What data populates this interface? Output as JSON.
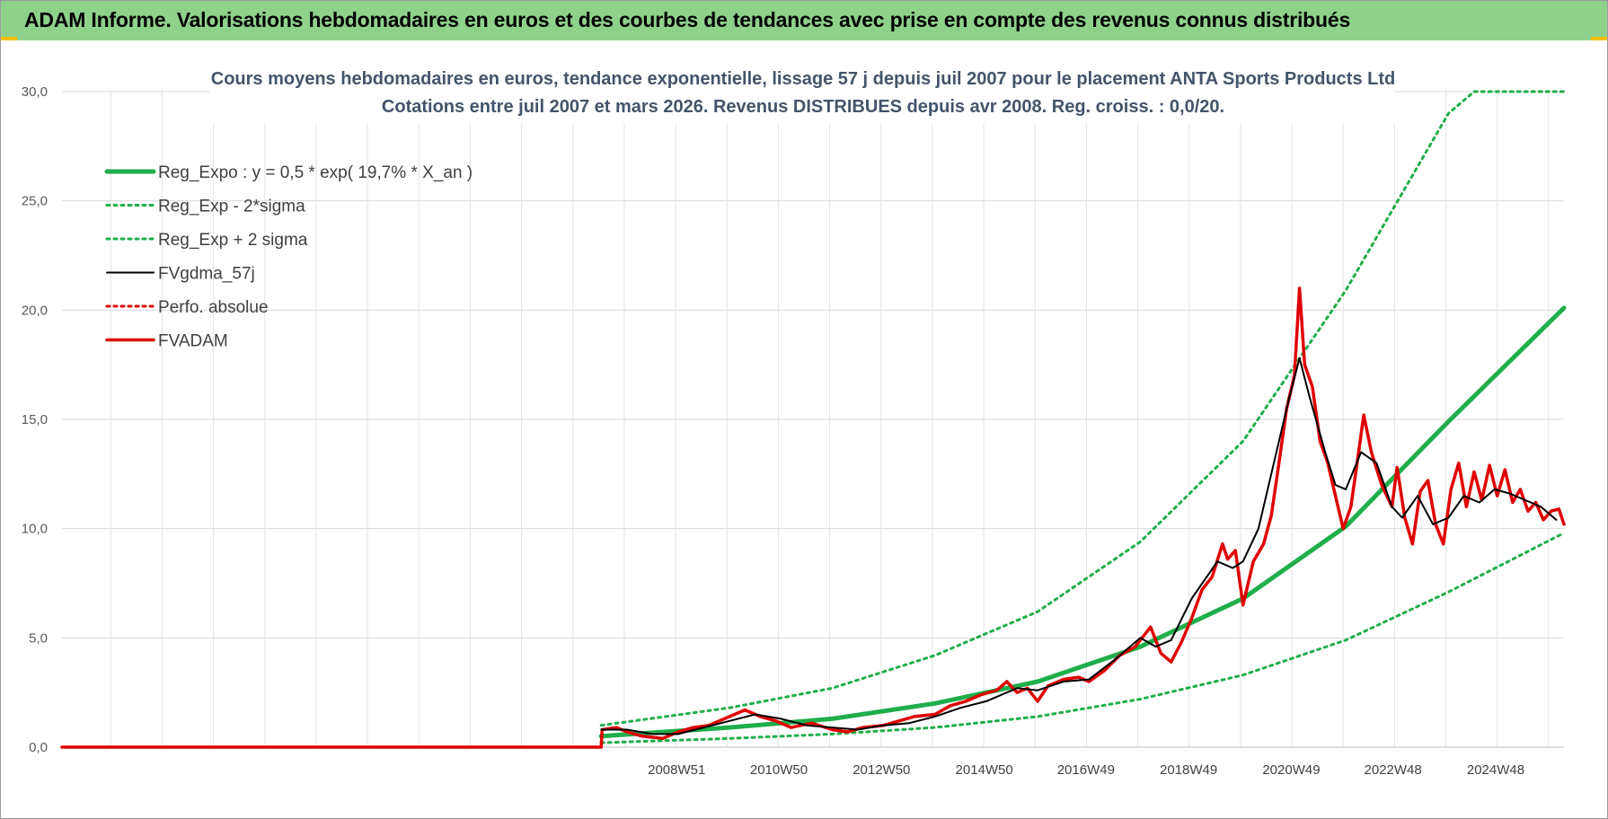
{
  "banner": {
    "title": "ADAM Informe. Valorisations hebdomadaires en euros et des courbes de tendances avec prise en compte des revenus connus distribués",
    "color": "#8fd18b"
  },
  "chart_data": {
    "type": "line",
    "title": "Cours moyens hebdomadaires en euros, tendance exponentielle, lissage 57 j depuis juil 2007 pour le placement ANTA Sports Products Ltd",
    "subtitle": "Cotations entre juil 2007 et mars 2026. Revenus DISTRIBUES depuis avr 2008. Reg. croiss. : 0,0/20.",
    "xlabel": "",
    "ylabel": "",
    "ylim": [
      0,
      30
    ],
    "yticks": [
      "0,0",
      "5,0",
      "10,0",
      "15,0",
      "20,0",
      "25,0",
      "30,0"
    ],
    "xticks": [
      "2008W51",
      "2010W50",
      "2012W50",
      "2014W50",
      "2016W49",
      "2018W49",
      "2020W49",
      "2022W48",
      "2024W48"
    ],
    "xtick_years": [
      2008.97,
      2010.96,
      2012.96,
      2014.96,
      2016.94,
      2018.94,
      2020.94,
      2022.92,
      2024.92
    ],
    "x_range_years": [
      1997.0,
      2026.25
    ],
    "grid": true,
    "legend_position": "top-left",
    "series": [
      {
        "name": "Reg_Expo : y = 0,5 * exp( 19,7% *  X_an )",
        "color": "#1fae4b",
        "style": "solid-thick",
        "x": [
          2007.5,
          2010,
          2012,
          2014,
          2016,
          2018,
          2020,
          2022,
          2024,
          2026.25
        ],
        "y": [
          0.5,
          0.9,
          1.3,
          2.0,
          3.0,
          4.6,
          6.8,
          10.1,
          14.9,
          20.1
        ]
      },
      {
        "name": "Reg_Exp - 2*sigma",
        "color": "#1fae4b",
        "style": "dotted",
        "x": [
          2007.5,
          2010,
          2012,
          2014,
          2016,
          2018,
          2020,
          2022,
          2024,
          2026.25
        ],
        "y": [
          0.2,
          0.4,
          0.6,
          0.9,
          1.4,
          2.2,
          3.3,
          4.9,
          7.1,
          9.8
        ]
      },
      {
        "name": "Reg_Exp + 2 sigma",
        "color": "#1fae4b",
        "style": "dotted",
        "x": [
          2007.5,
          2010,
          2012,
          2014,
          2016,
          2018,
          2020,
          2022,
          2024,
          2024.5,
          2026.25
        ],
        "y": [
          1.0,
          1.8,
          2.7,
          4.2,
          6.2,
          9.4,
          14.0,
          20.9,
          29.0,
          30.0,
          30.0
        ]
      },
      {
        "name": "FVgdma_57j",
        "color": "#000000",
        "style": "solid",
        "x": [
          2007.5,
          2008.0,
          2008.5,
          2009.0,
          2009.5,
          2010.0,
          2010.5,
          2011.0,
          2011.5,
          2012.0,
          2012.5,
          2013.0,
          2013.5,
          2014.0,
          2014.5,
          2015.0,
          2015.3,
          2015.6,
          2016.0,
          2016.5,
          2017.0,
          2017.5,
          2018.0,
          2018.3,
          2018.6,
          2019.0,
          2019.5,
          2019.8,
          2020.0,
          2020.3,
          2020.6,
          2020.9,
          2021.1,
          2021.3,
          2021.6,
          2021.8,
          2022.0,
          2022.3,
          2022.6,
          2022.9,
          2023.1,
          2023.4,
          2023.7,
          2024.0,
          2024.3,
          2024.6,
          2024.9,
          2025.2,
          2025.5,
          2025.8,
          2026.1
        ],
        "y": [
          0.8,
          0.8,
          0.6,
          0.6,
          0.9,
          1.2,
          1.5,
          1.3,
          1.0,
          0.9,
          0.8,
          1.0,
          1.1,
          1.4,
          1.8,
          2.1,
          2.4,
          2.7,
          2.6,
          3.0,
          3.1,
          4.0,
          5.0,
          4.6,
          4.9,
          6.8,
          8.5,
          8.2,
          8.5,
          10.0,
          13.0,
          16.0,
          17.8,
          16.0,
          13.5,
          12.0,
          11.8,
          13.5,
          13.0,
          11.0,
          10.5,
          11.5,
          10.2,
          10.5,
          11.5,
          11.2,
          11.8,
          11.6,
          11.3,
          11.0,
          10.4
        ]
      },
      {
        "name": "Perfo. absolue",
        "color": "#e00000",
        "style": "dotted",
        "x": [],
        "y": []
      },
      {
        "name": "FVADAM",
        "color": "#e00000",
        "style": "solid-thick",
        "x": [
          1997.0,
          2007.5,
          2007.52,
          2007.8,
          2008.0,
          2008.3,
          2008.7,
          2009.0,
          2009.3,
          2009.6,
          2010.0,
          2010.3,
          2010.6,
          2010.9,
          2011.2,
          2011.6,
          2012.0,
          2012.3,
          2012.6,
          2013.0,
          2013.3,
          2013.6,
          2014.0,
          2014.3,
          2014.6,
          2014.9,
          2015.2,
          2015.4,
          2015.6,
          2015.8,
          2016.0,
          2016.2,
          2016.5,
          2016.8,
          2017.0,
          2017.3,
          2017.6,
          2017.9,
          2018.2,
          2018.4,
          2018.6,
          2018.8,
          2019.0,
          2019.2,
          2019.4,
          2019.6,
          2019.7,
          2019.85,
          2020.0,
          2020.2,
          2020.4,
          2020.55,
          2020.7,
          2020.85,
          2021.0,
          2021.1,
          2021.2,
          2021.35,
          2021.5,
          2021.65,
          2021.8,
          2021.95,
          2022.1,
          2022.25,
          2022.35,
          2022.5,
          2022.7,
          2022.9,
          2023.0,
          2023.15,
          2023.3,
          2023.45,
          2023.6,
          2023.75,
          2023.9,
          2024.05,
          2024.2,
          2024.35,
          2024.5,
          2024.65,
          2024.8,
          2024.95,
          2025.1,
          2025.25,
          2025.4,
          2025.55,
          2025.7,
          2025.85,
          2026.0,
          2026.15,
          2026.25
        ],
        "y": [
          0.0,
          0.0,
          0.8,
          0.9,
          0.7,
          0.5,
          0.4,
          0.7,
          0.9,
          1.0,
          1.4,
          1.7,
          1.4,
          1.2,
          0.9,
          1.1,
          0.8,
          0.7,
          0.9,
          1.0,
          1.2,
          1.4,
          1.5,
          1.9,
          2.1,
          2.4,
          2.6,
          3.0,
          2.5,
          2.7,
          2.1,
          2.8,
          3.1,
          3.2,
          3.0,
          3.5,
          4.2,
          4.6,
          5.5,
          4.3,
          3.9,
          4.8,
          5.9,
          7.2,
          7.8,
          9.3,
          8.6,
          9.0,
          6.5,
          8.5,
          9.3,
          10.6,
          13.0,
          15.5,
          17.0,
          21.0,
          17.5,
          16.5,
          14.0,
          13.0,
          11.5,
          10.0,
          11.0,
          13.5,
          15.2,
          13.5,
          12.0,
          11.0,
          12.8,
          10.5,
          9.3,
          11.7,
          12.2,
          10.2,
          9.3,
          11.8,
          13.0,
          11.0,
          12.6,
          11.3,
          12.9,
          11.5,
          12.7,
          11.2,
          11.8,
          10.8,
          11.2,
          10.4,
          10.8,
          10.9,
          10.2
        ]
      }
    ]
  }
}
